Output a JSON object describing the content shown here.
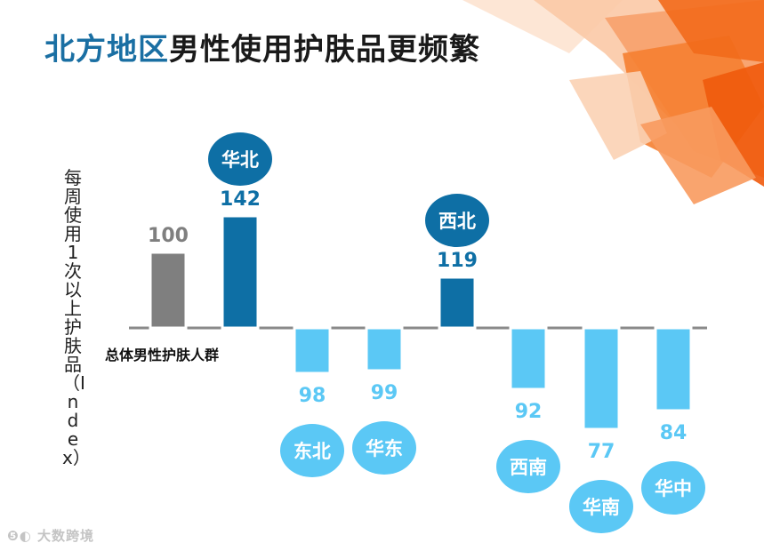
{
  "title": {
    "highlight": "北方地区",
    "rest": "男性使用护肤品更频繁"
  },
  "chart_data": {
    "type": "bar",
    "title": "北方地区男性使用护肤品更频繁",
    "ylabel": "每周使用1次以上护肤品（Index）",
    "baseline": 100,
    "baseline_label": "总体男性护肤人群",
    "ylim": [
      70,
      150
    ],
    "categories": [
      "总体男性护肤人群",
      "华北",
      "东北",
      "华东",
      "西北",
      "西南",
      "华南",
      "华中"
    ],
    "values": [
      100,
      142,
      98,
      99,
      119,
      92,
      77,
      84
    ],
    "region_labels": [
      "",
      "华北",
      "东北",
      "华东",
      "西北",
      "西南",
      "华南",
      "华中"
    ],
    "colors": {
      "baseline": "#7f7f7f",
      "above": "#0e6fa5",
      "below": "#5bc8f5",
      "above_text": "#0e6fa5",
      "below_text": "#5bc8f5",
      "baseline_text": "#7f7f7f",
      "bubble_above": "#0e6fa5",
      "bubble_below": "#5bc8f5"
    }
  },
  "watermark": "大数跨境"
}
